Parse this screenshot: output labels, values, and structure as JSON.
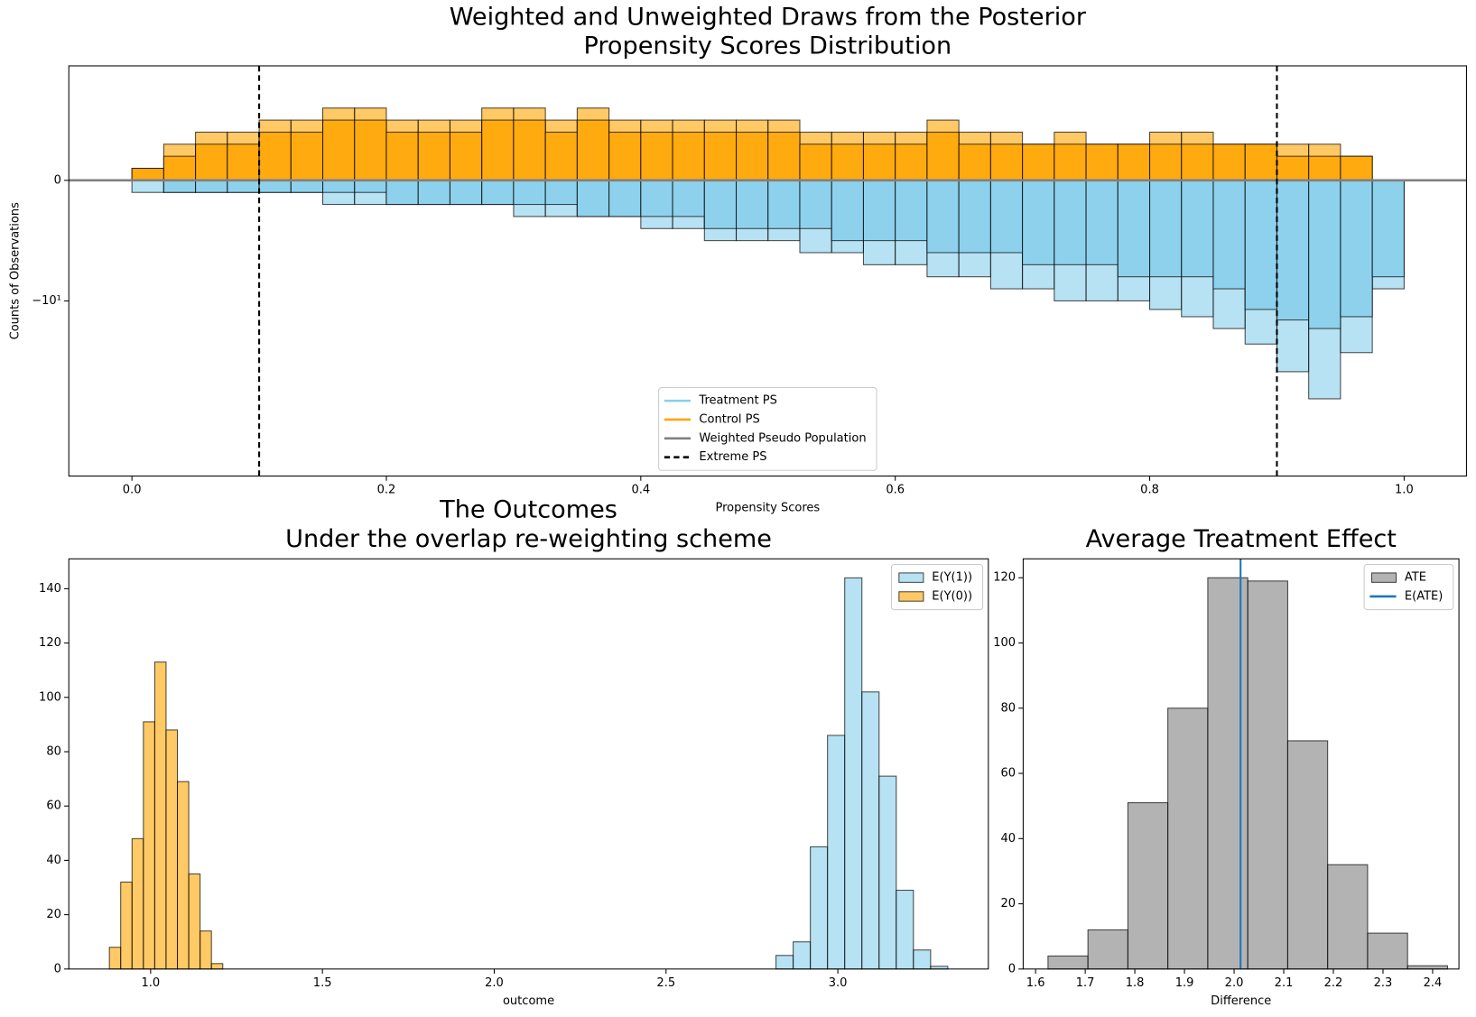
{
  "chart_data": [
    {
      "type": "histogram",
      "title": [
        "Weighted and Unweighted Draws from the Posterior",
        "Propensity Scores Distribution"
      ],
      "xlabel": "Propensity Scores",
      "ylabel": "Counts of Observations",
      "yscale": "symlog",
      "linthresh": 10,
      "bins": [
        0,
        0.025,
        0.05,
        0.075,
        0.1,
        0.125,
        0.15,
        0.175,
        0.2,
        0.225,
        0.25,
        0.275,
        0.3,
        0.325,
        0.35,
        0.375,
        0.4,
        0.425,
        0.45,
        0.475,
        0.5,
        0.525,
        0.55,
        0.575,
        0.6,
        0.625,
        0.65,
        0.675,
        0.7,
        0.725,
        0.75,
        0.775,
        0.8,
        0.825,
        0.85,
        0.875,
        0.9,
        0.925,
        0.95,
        0.975,
        1
      ],
      "series": [
        {
          "name": "Treatment PS",
          "color": "#87ceeb",
          "values": [
            -1,
            -1,
            -1,
            -1,
            -1,
            -1,
            -2,
            -2,
            -2,
            -2,
            -2,
            -2,
            -3,
            -3,
            -3,
            -3,
            -4,
            -4,
            -5,
            -5,
            -5,
            -6,
            -6,
            -7,
            -7,
            -8,
            -8,
            -9,
            -9,
            -10,
            -10,
            -10,
            -12,
            -14,
            -18,
            -25,
            -45,
            -80,
            -30,
            -9
          ],
          "weighted_values": [
            0,
            -1,
            -1,
            -1,
            -1,
            -1,
            -1,
            -1,
            -2,
            -2,
            -2,
            -2,
            -2,
            -2,
            -3,
            -3,
            -3,
            -3,
            -4,
            -4,
            -4,
            -4,
            -5,
            -5,
            -5,
            -6,
            -6,
            -6,
            -7,
            -7,
            -7,
            -8,
            -8,
            -8,
            -9,
            -12,
            -15,
            -18,
            -14,
            -8
          ]
        },
        {
          "name": "Control PS",
          "color": "#ffa500",
          "values": [
            1,
            3,
            4,
            4,
            5,
            5,
            6,
            6,
            5,
            5,
            5,
            6,
            6,
            5,
            6,
            5,
            5,
            5,
            5,
            5,
            5,
            4,
            4,
            4,
            4,
            5,
            4,
            4,
            3,
            4,
            3,
            3,
            4,
            4,
            3,
            3,
            3,
            3,
            2,
            0
          ],
          "weighted_values": [
            1,
            2,
            3,
            3,
            4,
            4,
            5,
            5,
            4,
            4,
            4,
            5,
            5,
            4,
            5,
            4,
            4,
            4,
            4,
            4,
            4,
            3,
            3,
            3,
            3,
            4,
            3,
            3,
            3,
            3,
            3,
            3,
            3,
            3,
            3,
            3,
            2,
            2,
            2,
            0
          ]
        }
      ],
      "hline": {
        "name": "Weighted Pseudo Population",
        "color": "#808080",
        "y": 0
      },
      "vlines": [
        {
          "name": "Extreme PS",
          "color": "#000000",
          "dashed": true,
          "x": [
            0.1,
            0.9
          ]
        }
      ],
      "legend": "lower center",
      "legend_marker": "line",
      "xlim": [
        -0.0496,
        1.049
      ],
      "ylim": [
        -412,
        9.5
      ],
      "xticks": [
        {
          "value": 0,
          "label": "0.0"
        },
        0.2,
        0.4,
        0.6,
        0.8,
        {
          "value": 1,
          "label": "1.0"
        }
      ],
      "yticks": [
        0,
        {
          "value": -10,
          "label": "−10¹"
        }
      ]
    },
    {
      "type": "histogram",
      "title": [
        "The Outcomes",
        "Under the overlap re-weighting scheme"
      ],
      "xlabel": "outcome",
      "series": [
        {
          "name": "E(Y(1))",
          "color": "#87ceeb",
          "bins": [
            2.82,
            2.87,
            2.92,
            2.97,
            3.02,
            3.07,
            3.12,
            3.17,
            3.22,
            3.27,
            3.32
          ],
          "values": [
            5,
            10,
            45,
            86,
            144,
            102,
            71,
            29,
            7,
            1
          ]
        },
        {
          "name": "E(Y(0))",
          "color": "#ffa500",
          "bins": [
            0.88,
            0.913,
            0.946,
            0.979,
            1.012,
            1.045,
            1.078,
            1.111,
            1.144,
            1.177,
            1.21
          ],
          "values": [
            8,
            32,
            48,
            91,
            113,
            88,
            69,
            35,
            14,
            2
          ]
        }
      ],
      "legend": "upper right",
      "xlim": [
        0.762,
        3.438
      ],
      "ylim": [
        0,
        151
      ],
      "xticks": [
        {
          "value": 1,
          "label": "1.0"
        },
        1.5,
        {
          "value": 2,
          "label": "2.0"
        },
        2.5,
        {
          "value": 3,
          "label": "3.0"
        }
      ],
      "yticks": [
        0,
        20,
        40,
        60,
        80,
        100,
        120,
        140
      ]
    },
    {
      "type": "histogram",
      "title": [
        "Average Treatment Effect"
      ],
      "xlabel": "Difference",
      "series": [
        {
          "name": "ATE",
          "color": "#808080",
          "bins": [
            1.625,
            1.7055,
            1.786,
            1.8665,
            1.947,
            2.0275,
            2.108,
            2.1885,
            2.269,
            2.3495,
            2.43
          ],
          "values": [
            4,
            12,
            51,
            80,
            120,
            119,
            70,
            32,
            11,
            1
          ]
        }
      ],
      "vlines": [
        {
          "name": "E(ATE)",
          "color": "#1f77b4",
          "x": [
            2.013
          ]
        }
      ],
      "legend": "upper right",
      "xlim": [
        1.575,
        2.453
      ],
      "ylim": [
        0,
        125.8
      ],
      "xticks": [
        1.6,
        1.7,
        1.8,
        1.9,
        {
          "value": 2,
          "label": "2.0"
        },
        2.1,
        2.2,
        2.3,
        2.4
      ],
      "yticks": [
        0,
        20,
        40,
        60,
        80,
        100,
        120
      ]
    }
  ]
}
